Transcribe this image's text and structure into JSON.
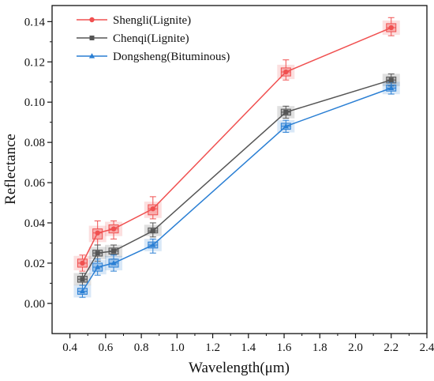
{
  "chart_data": {
    "type": "line",
    "xlabel": "Wavelength(μm)",
    "ylabel": "Reflectance",
    "xlim": [
      0.3,
      2.4
    ],
    "ylim": [
      -0.015,
      0.148
    ],
    "x_ticks": [
      0.4,
      0.6,
      0.8,
      1.0,
      1.2,
      1.4,
      1.6,
      1.8,
      2.0,
      2.2,
      2.4
    ],
    "x_tick_labels": [
      "0.4",
      "0.6",
      "0.8",
      "1.0",
      "1.2",
      "1.4",
      "1.6",
      "1.8",
      "2.0",
      "2.2",
      "2.4"
    ],
    "y_ticks": [
      0.0,
      0.02,
      0.04,
      0.06,
      0.08,
      0.1,
      0.12,
      0.14
    ],
    "y_tick_labels": [
      "0.00",
      "0.02",
      "0.04",
      "0.06",
      "0.08",
      "0.10",
      "0.12",
      "0.14"
    ],
    "grid": false,
    "legend_position": "top-left",
    "x": [
      0.47,
      0.555,
      0.645,
      0.865,
      1.61,
      2.2
    ],
    "series": [
      {
        "name": "Shengli(Lignite)",
        "color": "#f05050",
        "marker": "circle",
        "values": [
          0.02,
          0.035,
          0.037,
          0.047,
          0.115,
          0.137
        ],
        "box_low": [
          0.018,
          0.032,
          0.035,
          0.044,
          0.113,
          0.135
        ],
        "box_high": [
          0.022,
          0.037,
          0.039,
          0.049,
          0.117,
          0.139
        ],
        "whisker_low": [
          0.016,
          0.029,
          0.032,
          0.042,
          0.111,
          0.133
        ],
        "whisker_high": [
          0.024,
          0.041,
          0.041,
          0.053,
          0.121,
          0.142
        ]
      },
      {
        "name": "Chenqi(Lignite)",
        "color": "#555555",
        "marker": "square",
        "values": [
          0.012,
          0.025,
          0.026,
          0.036,
          0.095,
          0.111
        ],
        "box_low": [
          0.0105,
          0.0235,
          0.0245,
          0.035,
          0.0935,
          0.1095
        ],
        "box_high": [
          0.0135,
          0.0265,
          0.0275,
          0.0375,
          0.0965,
          0.1125
        ],
        "whisker_low": [
          0.009,
          0.021,
          0.022,
          0.033,
          0.092,
          0.108
        ],
        "whisker_high": [
          0.015,
          0.029,
          0.029,
          0.04,
          0.098,
          0.114
        ]
      },
      {
        "name": "Dongsheng(Bituminous)",
        "color": "#2a7fd4",
        "marker": "triangle",
        "values": [
          0.006,
          0.018,
          0.02,
          0.029,
          0.088,
          0.107
        ],
        "box_low": [
          0.0045,
          0.016,
          0.018,
          0.0275,
          0.0865,
          0.1055
        ],
        "box_high": [
          0.0075,
          0.02,
          0.022,
          0.0305,
          0.0895,
          0.1085
        ],
        "whisker_low": [
          0.003,
          0.014,
          0.016,
          0.025,
          0.085,
          0.104
        ],
        "whisker_high": [
          0.009,
          0.022,
          0.024,
          0.032,
          0.091,
          0.11
        ]
      }
    ]
  }
}
